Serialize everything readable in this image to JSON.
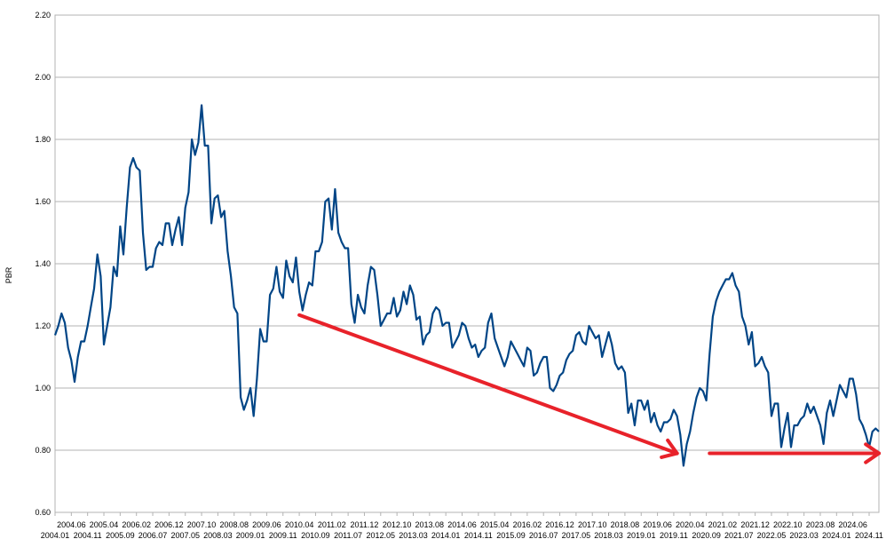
{
  "chart_data": {
    "type": "line",
    "ylabel": "PBR",
    "ylim": [
      0.6,
      2.2
    ],
    "y_ticks": [
      "0.60",
      "0.80",
      "1.00",
      "1.20",
      "1.40",
      "1.60",
      "1.80",
      "2.00",
      "2.20"
    ],
    "grid": "horizontal",
    "x_start": "2004.01",
    "x_end": "2024.12",
    "x_ticks_row1": [
      "2004.06",
      "2005.04",
      "2006.02",
      "2006.12",
      "2007.10",
      "2008.08",
      "2009.06",
      "2010.04",
      "2011.02",
      "2011.12",
      "2012.10",
      "2013.08",
      "2014.06",
      "2015.04",
      "2016.02",
      "2016.12",
      "2017.10",
      "2018.08",
      "2019.06",
      "2020.04",
      "2021.02",
      "2021.12",
      "2022.10",
      "2023.08",
      "2024.06"
    ],
    "x_ticks_row2": [
      "2004.01",
      "2004.11",
      "2005.09",
      "2006.07",
      "2007.05",
      "2008.03",
      "2009.01",
      "2009.11",
      "2010.09",
      "2011.07",
      "2012.05",
      "2013.03",
      "2014.01",
      "2014.11",
      "2015.09",
      "2016.07",
      "2017.05",
      "2018.03",
      "2019.01",
      "2019.11",
      "2020.09",
      "2021.07",
      "2022.05",
      "2023.03",
      "2024.01",
      "2024.11"
    ],
    "series": [
      {
        "color": "#004586",
        "points": [
          [
            "2004.01",
            1.17
          ],
          [
            "2004.02",
            1.2
          ],
          [
            "2004.03",
            1.24
          ],
          [
            "2004.04",
            1.21
          ],
          [
            "2004.05",
            1.13
          ],
          [
            "2004.06",
            1.09
          ],
          [
            "2004.07",
            1.02
          ],
          [
            "2004.08",
            1.1
          ],
          [
            "2004.09",
            1.15
          ],
          [
            "2004.10",
            1.15
          ],
          [
            "2004.11",
            1.2
          ],
          [
            "2004.12",
            1.26
          ],
          [
            "2005.01",
            1.32
          ],
          [
            "2005.02",
            1.43
          ],
          [
            "2005.03",
            1.36
          ],
          [
            "2005.04",
            1.14
          ],
          [
            "2005.05",
            1.2
          ],
          [
            "2005.06",
            1.26
          ],
          [
            "2005.07",
            1.39
          ],
          [
            "2005.08",
            1.36
          ],
          [
            "2005.09",
            1.52
          ],
          [
            "2005.10",
            1.43
          ],
          [
            "2005.11",
            1.58
          ],
          [
            "2005.12",
            1.71
          ],
          [
            "2006.01",
            1.74
          ],
          [
            "2006.02",
            1.71
          ],
          [
            "2006.03",
            1.7
          ],
          [
            "2006.04",
            1.5
          ],
          [
            "2006.05",
            1.38
          ],
          [
            "2006.06",
            1.39
          ],
          [
            "2006.07",
            1.39
          ],
          [
            "2006.08",
            1.45
          ],
          [
            "2006.09",
            1.47
          ],
          [
            "2006.10",
            1.46
          ],
          [
            "2006.11",
            1.53
          ],
          [
            "2006.12",
            1.53
          ],
          [
            "2007.01",
            1.46
          ],
          [
            "2007.02",
            1.51
          ],
          [
            "2007.03",
            1.55
          ],
          [
            "2007.04",
            1.46
          ],
          [
            "2007.05",
            1.58
          ],
          [
            "2007.06",
            1.63
          ],
          [
            "2007.07",
            1.8
          ],
          [
            "2007.08",
            1.75
          ],
          [
            "2007.09",
            1.79
          ],
          [
            "2007.10",
            1.91
          ],
          [
            "2007.11",
            1.78
          ],
          [
            "2007.12",
            1.78
          ],
          [
            "2008.01",
            1.53
          ],
          [
            "2008.02",
            1.61
          ],
          [
            "2008.03",
            1.62
          ],
          [
            "2008.04",
            1.55
          ],
          [
            "2008.05",
            1.57
          ],
          [
            "2008.06",
            1.44
          ],
          [
            "2008.07",
            1.36
          ],
          [
            "2008.08",
            1.26
          ],
          [
            "2008.09",
            1.24
          ],
          [
            "2008.10",
            0.97
          ],
          [
            "2008.11",
            0.93
          ],
          [
            "2008.12",
            0.96
          ],
          [
            "2009.01",
            1.0
          ],
          [
            "2009.02",
            0.91
          ],
          [
            "2009.03",
            1.03
          ],
          [
            "2009.04",
            1.19
          ],
          [
            "2009.05",
            1.15
          ],
          [
            "2009.06",
            1.15
          ],
          [
            "2009.07",
            1.3
          ],
          [
            "2009.08",
            1.32
          ],
          [
            "2009.09",
            1.39
          ],
          [
            "2009.10",
            1.31
          ],
          [
            "2009.11",
            1.29
          ],
          [
            "2009.12",
            1.41
          ],
          [
            "2010.01",
            1.36
          ],
          [
            "2010.02",
            1.34
          ],
          [
            "2010.03",
            1.42
          ],
          [
            "2010.04",
            1.31
          ],
          [
            "2010.05",
            1.25
          ],
          [
            "2010.06",
            1.3
          ],
          [
            "2010.07",
            1.34
          ],
          [
            "2010.08",
            1.33
          ],
          [
            "2010.09",
            1.44
          ],
          [
            "2010.10",
            1.44
          ],
          [
            "2010.11",
            1.47
          ],
          [
            "2010.12",
            1.6
          ],
          [
            "2011.01",
            1.61
          ],
          [
            "2011.02",
            1.51
          ],
          [
            "2011.03",
            1.64
          ],
          [
            "2011.04",
            1.5
          ],
          [
            "2011.05",
            1.47
          ],
          [
            "2011.06",
            1.45
          ],
          [
            "2011.07",
            1.45
          ],
          [
            "2011.08",
            1.27
          ],
          [
            "2011.09",
            1.21
          ],
          [
            "2011.10",
            1.3
          ],
          [
            "2011.11",
            1.26
          ],
          [
            "2011.12",
            1.24
          ],
          [
            "2012.01",
            1.33
          ],
          [
            "2012.02",
            1.39
          ],
          [
            "2012.03",
            1.38
          ],
          [
            "2012.04",
            1.3
          ],
          [
            "2012.05",
            1.2
          ],
          [
            "2012.06",
            1.22
          ],
          [
            "2012.07",
            1.24
          ],
          [
            "2012.08",
            1.24
          ],
          [
            "2012.09",
            1.29
          ],
          [
            "2012.10",
            1.23
          ],
          [
            "2012.11",
            1.25
          ],
          [
            "2012.12",
            1.31
          ],
          [
            "2013.01",
            1.27
          ],
          [
            "2013.02",
            1.33
          ],
          [
            "2013.03",
            1.3
          ],
          [
            "2013.04",
            1.22
          ],
          [
            "2013.05",
            1.23
          ],
          [
            "2013.06",
            1.14
          ],
          [
            "2013.07",
            1.17
          ],
          [
            "2013.08",
            1.18
          ],
          [
            "2013.09",
            1.24
          ],
          [
            "2013.10",
            1.26
          ],
          [
            "2013.11",
            1.25
          ],
          [
            "2013.12",
            1.2
          ],
          [
            "2014.01",
            1.21
          ],
          [
            "2014.02",
            1.21
          ],
          [
            "2014.03",
            1.13
          ],
          [
            "2014.04",
            1.15
          ],
          [
            "2014.05",
            1.17
          ],
          [
            "2014.06",
            1.21
          ],
          [
            "2014.07",
            1.2
          ],
          [
            "2014.08",
            1.16
          ],
          [
            "2014.09",
            1.13
          ],
          [
            "2014.10",
            1.14
          ],
          [
            "2014.11",
            1.1
          ],
          [
            "2014.12",
            1.12
          ],
          [
            "2015.01",
            1.13
          ],
          [
            "2015.02",
            1.21
          ],
          [
            "2015.03",
            1.24
          ],
          [
            "2015.04",
            1.16
          ],
          [
            "2015.05",
            1.13
          ],
          [
            "2015.06",
            1.1
          ],
          [
            "2015.07",
            1.07
          ],
          [
            "2015.08",
            1.1
          ],
          [
            "2015.09",
            1.15
          ],
          [
            "2015.10",
            1.13
          ],
          [
            "2015.11",
            1.11
          ],
          [
            "2015.12",
            1.09
          ],
          [
            "2016.01",
            1.07
          ],
          [
            "2016.02",
            1.13
          ],
          [
            "2016.03",
            1.12
          ],
          [
            "2016.04",
            1.04
          ],
          [
            "2016.05",
            1.05
          ],
          [
            "2016.06",
            1.08
          ],
          [
            "2016.07",
            1.1
          ],
          [
            "2016.08",
            1.1
          ],
          [
            "2016.09",
            1.0
          ],
          [
            "2016.10",
            0.99
          ],
          [
            "2016.11",
            1.01
          ],
          [
            "2016.12",
            1.04
          ],
          [
            "2017.01",
            1.05
          ],
          [
            "2017.02",
            1.09
          ],
          [
            "2017.03",
            1.11
          ],
          [
            "2017.04",
            1.12
          ],
          [
            "2017.05",
            1.17
          ],
          [
            "2017.06",
            1.18
          ],
          [
            "2017.07",
            1.15
          ],
          [
            "2017.08",
            1.14
          ],
          [
            "2017.09",
            1.2
          ],
          [
            "2017.10",
            1.18
          ],
          [
            "2017.11",
            1.16
          ],
          [
            "2017.12",
            1.17
          ],
          [
            "2018.01",
            1.1
          ],
          [
            "2018.02",
            1.14
          ],
          [
            "2018.03",
            1.18
          ],
          [
            "2018.04",
            1.14
          ],
          [
            "2018.05",
            1.08
          ],
          [
            "2018.06",
            1.06
          ],
          [
            "2018.07",
            1.07
          ],
          [
            "2018.08",
            1.05
          ],
          [
            "2018.09",
            0.92
          ],
          [
            "2018.10",
            0.95
          ],
          [
            "2018.11",
            0.88
          ],
          [
            "2018.12",
            0.96
          ],
          [
            "2019.01",
            0.96
          ],
          [
            "2019.02",
            0.93
          ],
          [
            "2019.03",
            0.96
          ],
          [
            "2019.04",
            0.89
          ],
          [
            "2019.05",
            0.92
          ],
          [
            "2019.06",
            0.88
          ],
          [
            "2019.07",
            0.86
          ],
          [
            "2019.08",
            0.89
          ],
          [
            "2019.09",
            0.89
          ],
          [
            "2019.10",
            0.9
          ],
          [
            "2019.11",
            0.93
          ],
          [
            "2019.12",
            0.91
          ],
          [
            "2020.01",
            0.85
          ],
          [
            "2020.02",
            0.75
          ],
          [
            "2020.03",
            0.82
          ],
          [
            "2020.04",
            0.86
          ],
          [
            "2020.05",
            0.92
          ],
          [
            "2020.06",
            0.97
          ],
          [
            "2020.07",
            1.0
          ],
          [
            "2020.08",
            0.99
          ],
          [
            "2020.09",
            0.96
          ],
          [
            "2020.10",
            1.11
          ],
          [
            "2020.11",
            1.23
          ],
          [
            "2020.12",
            1.28
          ],
          [
            "2021.01",
            1.31
          ],
          [
            "2021.02",
            1.33
          ],
          [
            "2021.03",
            1.35
          ],
          [
            "2021.04",
            1.35
          ],
          [
            "2021.05",
            1.37
          ],
          [
            "2021.06",
            1.33
          ],
          [
            "2021.07",
            1.31
          ],
          [
            "2021.08",
            1.23
          ],
          [
            "2021.09",
            1.2
          ],
          [
            "2021.10",
            1.14
          ],
          [
            "2021.11",
            1.18
          ],
          [
            "2021.12",
            1.07
          ],
          [
            "2022.01",
            1.08
          ],
          [
            "2022.02",
            1.1
          ],
          [
            "2022.03",
            1.07
          ],
          [
            "2022.04",
            1.05
          ],
          [
            "2022.05",
            0.91
          ],
          [
            "2022.06",
            0.95
          ],
          [
            "2022.07",
            0.95
          ],
          [
            "2022.08",
            0.81
          ],
          [
            "2022.09",
            0.87
          ],
          [
            "2022.10",
            0.92
          ],
          [
            "2022.11",
            0.81
          ],
          [
            "2022.12",
            0.88
          ],
          [
            "2023.01",
            0.88
          ],
          [
            "2023.02",
            0.9
          ],
          [
            "2023.03",
            0.91
          ],
          [
            "2023.04",
            0.95
          ],
          [
            "2023.05",
            0.92
          ],
          [
            "2023.06",
            0.94
          ],
          [
            "2023.07",
            0.91
          ],
          [
            "2023.08",
            0.88
          ],
          [
            "2023.09",
            0.82
          ],
          [
            "2023.10",
            0.92
          ],
          [
            "2023.11",
            0.96
          ],
          [
            "2023.12",
            0.91
          ],
          [
            "2024.01",
            0.96
          ],
          [
            "2024.02",
            1.01
          ],
          [
            "2024.03",
            0.99
          ],
          [
            "2024.04",
            0.97
          ],
          [
            "2024.05",
            1.03
          ],
          [
            "2024.06",
            1.03
          ],
          [
            "2024.07",
            0.98
          ],
          [
            "2024.08",
            0.9
          ],
          [
            "2024.09",
            0.88
          ],
          [
            "2024.10",
            0.85
          ],
          [
            "2024.11",
            0.81
          ],
          [
            "2024.12",
            0.86
          ],
          [
            "2025.01",
            0.87
          ],
          [
            "2025.02",
            0.86
          ]
        ]
      }
    ],
    "annotations": [
      {
        "type": "arrow",
        "color": "#e8222a",
        "from": [
          "2010.04",
          1.235
        ],
        "to": [
          "2019.12",
          0.79
        ]
      },
      {
        "type": "arrow",
        "color": "#e8222a",
        "from": [
          "2020.10",
          0.79
        ],
        "to": [
          "2025.02",
          0.79
        ]
      }
    ]
  }
}
